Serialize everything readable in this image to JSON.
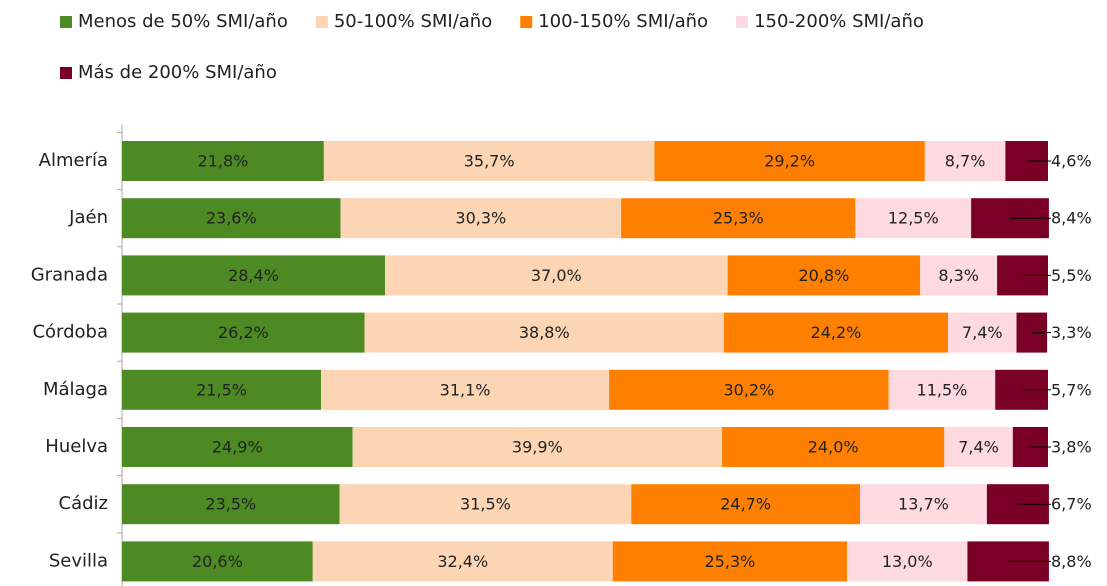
{
  "chart_data": {
    "type": "bar",
    "orientation": "horizontal",
    "stacked": true,
    "categories": [
      "Almería",
      "Jaén",
      "Granada",
      "Córdoba",
      "Málaga",
      "Huelva",
      "Cádiz",
      "Sevilla"
    ],
    "xlim": [
      0,
      100
    ],
    "legend": "top",
    "series": [
      {
        "name": "Menos de 50% SMI/año",
        "color": "#4e8a24",
        "values": [
          21.8,
          23.6,
          28.4,
          26.2,
          21.5,
          24.9,
          23.5,
          20.6
        ],
        "value_labels": [
          "21,8%",
          "23,6%",
          "28,4%",
          "26,2%",
          "21,5%",
          "24,9%",
          "23,5%",
          "20,6%"
        ]
      },
      {
        "name": "50-100% SMI/año",
        "color": "#fcd5b4",
        "values": [
          35.7,
          30.3,
          37.0,
          38.8,
          31.1,
          39.9,
          31.5,
          32.4
        ],
        "value_labels": [
          "35,7%",
          "30,3%",
          "37,0%",
          "38,8%",
          "31,1%",
          "39,9%",
          "31,5%",
          "32,4%"
        ]
      },
      {
        "name": "100-150% SMI/año",
        "color": "#ff8000",
        "values": [
          29.2,
          25.3,
          20.8,
          24.2,
          30.2,
          24.0,
          24.7,
          25.3
        ],
        "value_labels": [
          "29,2%",
          "25,3%",
          "20,8%",
          "24,2%",
          "30,2%",
          "24,0%",
          "24,7%",
          "25,3%"
        ]
      },
      {
        "name": "150-200% SMI/año",
        "color": "#fcdadf",
        "values": [
          8.7,
          12.5,
          8.3,
          7.4,
          11.5,
          7.4,
          13.7,
          13.0
        ],
        "value_labels": [
          "8,7%",
          "12,5%",
          "8,3%",
          "7,4%",
          "11,5%",
          "7,4%",
          "13,7%",
          "13,0%"
        ]
      },
      {
        "name": "Más de 200% SMI/año",
        "color": "#7b0026",
        "values": [
          4.6,
          8.4,
          5.5,
          3.3,
          5.7,
          3.8,
          6.7,
          8.8
        ],
        "value_labels": [
          "4,6%",
          "8,4%",
          "5,5%",
          "3,3%",
          "5,7%",
          "3,8%",
          "6,7%",
          "8,8%"
        ]
      }
    ]
  }
}
